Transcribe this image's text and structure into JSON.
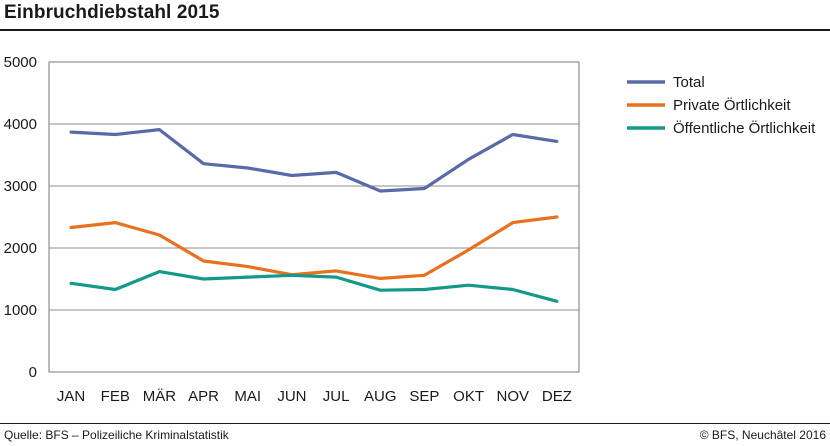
{
  "header": {
    "title": "Einbruchdiebstahl 2015"
  },
  "footer": {
    "source": "Quelle: BFS – Polizeiliche Kriminalstatistik",
    "credit": "© BFS, Neuchâtel 2016"
  },
  "chart_data": {
    "type": "line",
    "title": "Einbruchdiebstahl 2015",
    "xlabel": "",
    "ylabel": "",
    "categories": [
      "JAN",
      "FEB",
      "MÄR",
      "APR",
      "MAI",
      "JUN",
      "JUL",
      "AUG",
      "SEP",
      "OKT",
      "NOV",
      "DEZ"
    ],
    "ylim": [
      0,
      5000
    ],
    "yticks": [
      0,
      1000,
      2000,
      3000,
      4000,
      5000
    ],
    "grid": true,
    "legend": "right",
    "series": [
      {
        "name": "Total",
        "color": "#5a6aa8",
        "values": [
          3870,
          3830,
          3910,
          3360,
          3290,
          3170,
          3220,
          2920,
          2960,
          3430,
          3830,
          3720
        ]
      },
      {
        "name": "Private Örtlichkeit",
        "color": "#e8701e",
        "values": [
          2330,
          2410,
          2210,
          1790,
          1700,
          1570,
          1630,
          1510,
          1560,
          1970,
          2410,
          2500
        ]
      },
      {
        "name": "Öffentliche Örtlichkeit",
        "color": "#13998a",
        "values": [
          1430,
          1330,
          1620,
          1500,
          1530,
          1560,
          1530,
          1320,
          1330,
          1400,
          1330,
          1140
        ]
      }
    ]
  }
}
